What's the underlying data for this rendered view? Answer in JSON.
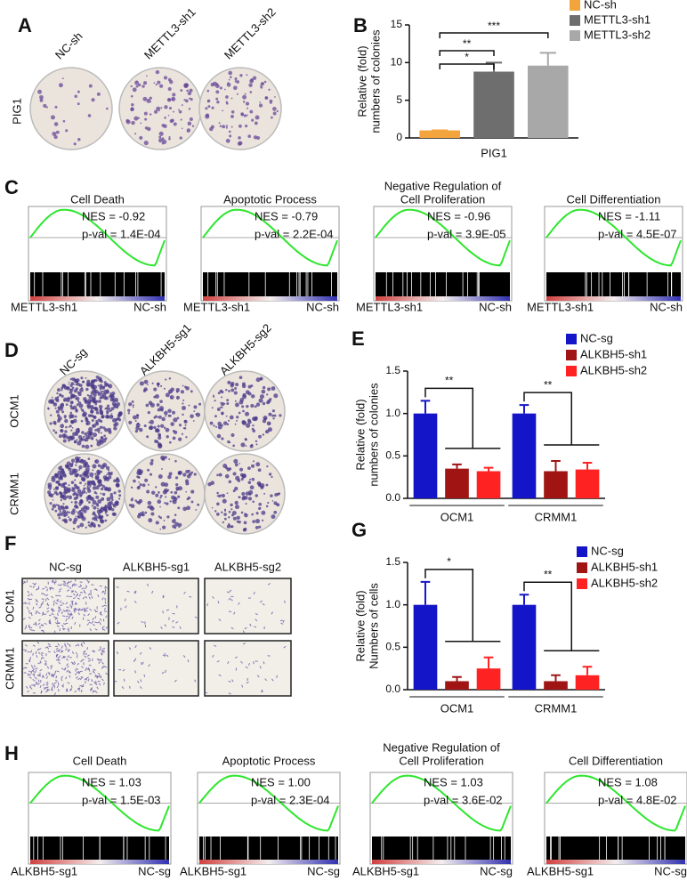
{
  "panel_a": {
    "letter": "A",
    "columns": [
      "NC-sh",
      "METTL3-sh1",
      "METTL3-sh2"
    ],
    "row": "PIG1"
  },
  "panel_c": {
    "letter": "C",
    "plots": [
      {
        "title": [
          "Cell Death"
        ],
        "nes": "NES = -0.92",
        "pval": "p-val = 1.4E-04",
        "left": "METTL3-sh1",
        "right": "NC-sh"
      },
      {
        "title": [
          "Apoptotic Process"
        ],
        "nes": "NES = -0.79",
        "pval": "p-val = 2.2E-04",
        "left": "METTL3-sh1",
        "right": "NC-sh"
      },
      {
        "title": [
          "Negative Regulation of",
          "Cell Proliferation"
        ],
        "nes": "NES = -0.96",
        "pval": "p-val = 3.9E-05",
        "left": "METTL3-sh1",
        "right": "NC-sh"
      },
      {
        "title": [
          "Cell Differentiation"
        ],
        "nes": "NES = -1.11",
        "pval": "p-val = 4.5E-07",
        "left": "METTL3-sh1",
        "right": "NC-sh"
      }
    ]
  },
  "panel_d": {
    "letter": "D",
    "columns": [
      "NC-sg",
      "ALKBH5-sg1",
      "ALKBH5-sg2"
    ],
    "rows": [
      "OCM1",
      "CRMM1"
    ]
  },
  "panel_f": {
    "letter": "F",
    "columns": [
      "NC-sg",
      "ALKBH5-sg1",
      "ALKBH5-sg2"
    ],
    "rows": [
      "OCM1",
      "CRMM1"
    ]
  },
  "panel_h": {
    "letter": "H",
    "plots": [
      {
        "title": [
          "Cell Death"
        ],
        "nes": "NES = 1.03",
        "pval": "p-val = 1.5E-03",
        "left": "ALKBH5-sg1",
        "right": "NC-sg"
      },
      {
        "title": [
          "Apoptotic Process"
        ],
        "nes": "NES = 1.00",
        "pval": "p-val = 2.3E-04",
        "left": "ALKBH5-sg1",
        "right": "NC-sg"
      },
      {
        "title": [
          "Negative Regulation of",
          "Cell Proliferation"
        ],
        "nes": "NES = 1.03",
        "pval": "p-val = 3.6E-02",
        "left": "ALKBH5-sg1",
        "right": "NC-sg"
      },
      {
        "title": [
          "Cell Differentiation"
        ],
        "nes": "NES = 1.08",
        "pval": "p-val = 4.8E-02",
        "left": "ALKBH5-sg1",
        "right": "NC-sg"
      }
    ]
  },
  "chart_data": [
    {
      "type": "bar",
      "letter": "B",
      "y_label": [
        "Relative (fold)",
        "numbers of colonies"
      ],
      "categories": [
        "PIG1"
      ],
      "series": [
        {
          "name": "NC-sh",
          "color": "#f4a43c",
          "values": [
            1
          ],
          "errors": [
            0
          ]
        },
        {
          "name": "METTL3-sh1",
          "color": "#6e6e6e",
          "values": [
            8.8
          ],
          "errors": [
            1.2
          ]
        },
        {
          "name": "METTL3-sh2",
          "color": "#a8a8a8",
          "values": [
            9.6
          ],
          "errors": [
            1.7
          ]
        }
      ],
      "ylim": [
        0,
        15
      ],
      "yticks": [
        0,
        5,
        10,
        15
      ],
      "annotations": [
        "***",
        "**",
        "*"
      ]
    },
    {
      "type": "bar",
      "letter": "E",
      "y_label": [
        "Relative (fold)",
        "numbers of colonies"
      ],
      "categories": [
        "OCM1",
        "CRMM1"
      ],
      "series": [
        {
          "name": "NC-sg",
          "color": "#1414c8",
          "values": [
            1.0,
            1.0
          ],
          "errors": [
            0.15,
            0.1
          ]
        },
        {
          "name": "ALKBH5-sh1",
          "color": "#a01414",
          "values": [
            0.35,
            0.32
          ],
          "errors": [
            0.05,
            0.12
          ]
        },
        {
          "name": "ALKBH5-sh2",
          "color": "#ff2222",
          "values": [
            0.32,
            0.34
          ],
          "errors": [
            0.04,
            0.08
          ]
        }
      ],
      "ylim": [
        0,
        1.5
      ],
      "yticks": [
        {
          "value": 0,
          "label": "0.0"
        },
        0.5,
        {
          "value": 1,
          "label": "1.0"
        },
        1.5
      ],
      "annotations": [
        "**",
        "**"
      ]
    },
    {
      "type": "bar",
      "letter": "G",
      "y_label": [
        "Relative (fold)",
        "Numbers of cells"
      ],
      "categories": [
        "OCM1",
        "CRMM1"
      ],
      "series": [
        {
          "name": "NC-sg",
          "color": "#1414c8",
          "values": [
            1.0,
            1.0
          ],
          "errors": [
            0.27,
            0.12
          ]
        },
        {
          "name": "ALKBH5-sh1",
          "color": "#a01414",
          "values": [
            0.1,
            0.1
          ],
          "errors": [
            0.05,
            0.07
          ]
        },
        {
          "name": "ALKBH5-sh2",
          "color": "#ff2222",
          "values": [
            0.25,
            0.17
          ],
          "errors": [
            0.13,
            0.1
          ]
        }
      ],
      "ylim": [
        0,
        1.5
      ],
      "yticks": [
        {
          "value": 0,
          "label": "0.0"
        },
        0.5,
        {
          "value": 1,
          "label": "1.0"
        },
        1.5
      ],
      "annotations": [
        "*",
        "**"
      ]
    }
  ]
}
